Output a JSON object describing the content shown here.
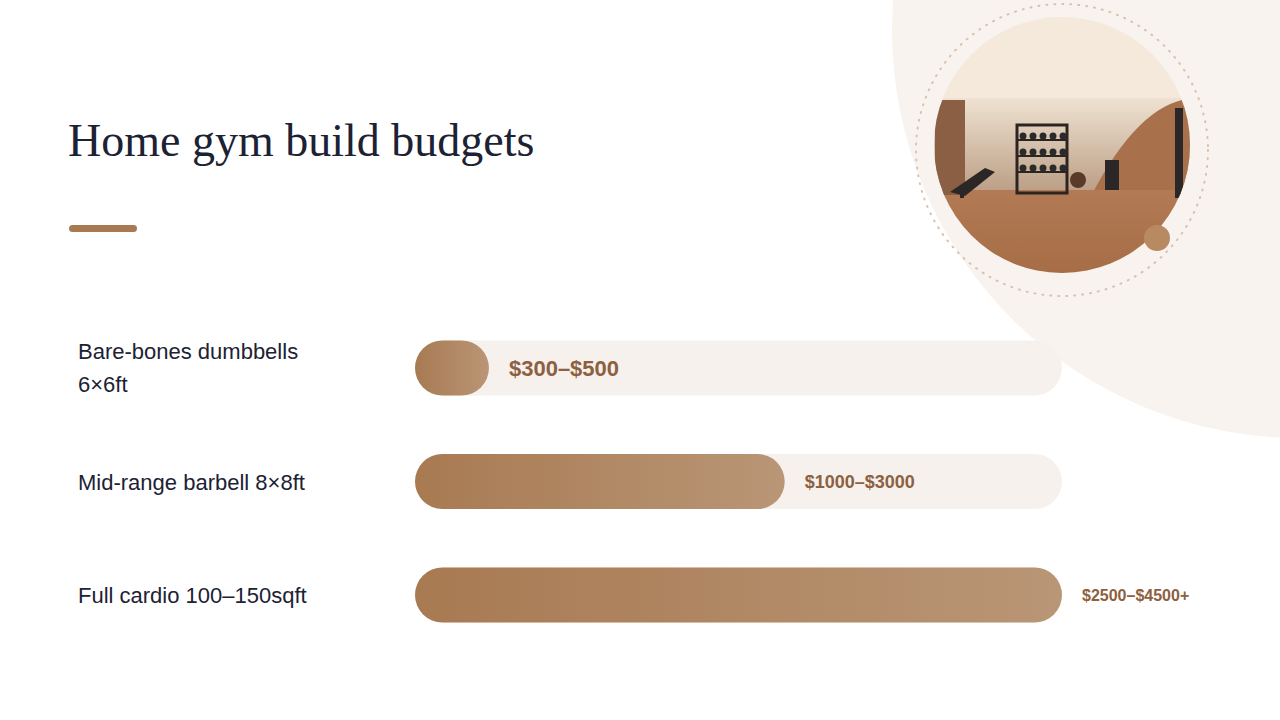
{
  "chart_data": {
    "type": "bar",
    "orientation": "horizontal",
    "title": "Home gym build budgets",
    "categories": [
      "Bare-bones dumbbells 6×6ft",
      "Mid-range barbell 8×8ft",
      "Full cardio 100–150sqft"
    ],
    "values": [
      400,
      2000,
      3500
    ],
    "annotations": [
      "$300–$500",
      "$1000–$3000",
      "$2500–$4500+"
    ],
    "xlim": [
      0,
      3500
    ],
    "tick_labels": false,
    "grid": false,
    "color": "#a87a52"
  }
}
